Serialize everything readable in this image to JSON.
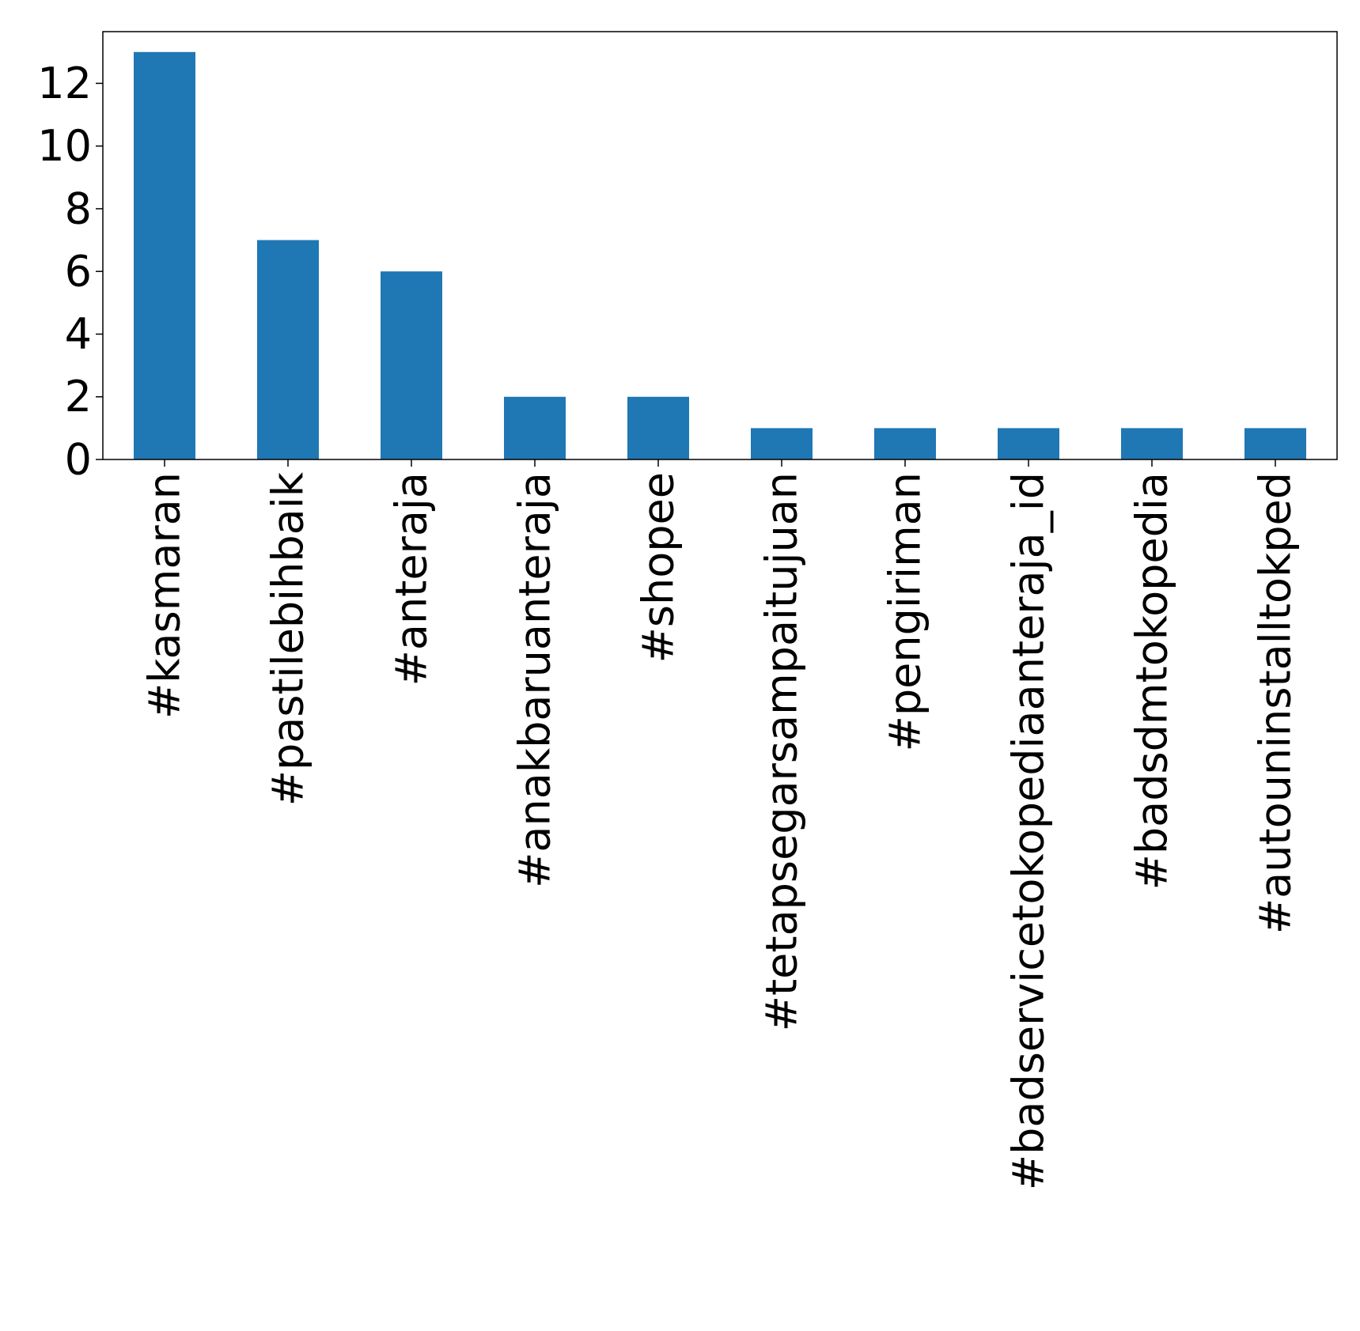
{
  "chart_data": {
    "type": "bar",
    "title": "",
    "xlabel": "",
    "ylabel": "",
    "categories": [
      "#kasmaran",
      "#pastilebihbaik",
      "#anteraja",
      "#anakbaruanteraja",
      "#shopee",
      "#tetapsegarsampaitujuan",
      "#pengiriman",
      "#badservicetokopediaanteraja_id",
      "#badsdmtokopedia",
      "#autouninstalltokped"
    ],
    "values": [
      13,
      7,
      6,
      2,
      2,
      1,
      1,
      1,
      1,
      1
    ],
    "ylim": [
      0,
      13.65
    ],
    "yticks": [
      0,
      2,
      4,
      6,
      8,
      10,
      12
    ],
    "bar_color": "#1f77b4",
    "grid": false,
    "legend": "none"
  }
}
